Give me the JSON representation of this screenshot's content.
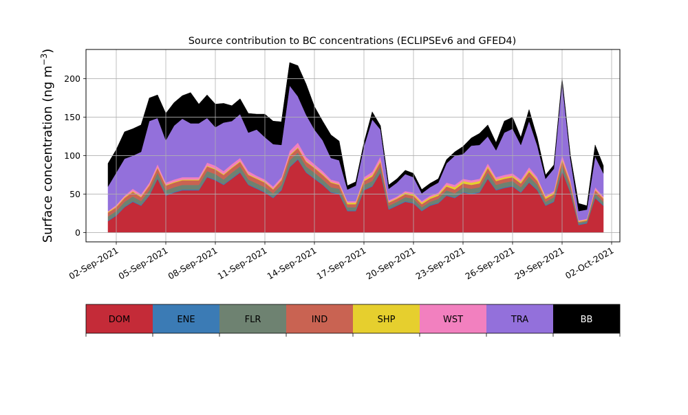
{
  "chart_data": {
    "type": "area",
    "stacked": true,
    "title": "Source contribution to BC concentrations (ECLIPSEv6 and GFED4)",
    "ylabel_main": "Surface concentration (ng m",
    "ylabel_sup": "−3",
    "ylabel_close": ")",
    "xlabel": "",
    "ylim": [
      -12,
      238
    ],
    "yticks": [
      0,
      50,
      100,
      150,
      200
    ],
    "xlim": [
      "2021-08-31T04:00",
      "2021-10-02T12:00"
    ],
    "x_ticks": [
      {
        "date": "2021-09-02",
        "label": "02-Sep-2021"
      },
      {
        "date": "2021-09-05",
        "label": "05-Sep-2021"
      },
      {
        "date": "2021-09-08",
        "label": "08-Sep-2021"
      },
      {
        "date": "2021-09-11",
        "label": "11-Sep-2021"
      },
      {
        "date": "2021-09-14",
        "label": "14-Sep-2021"
      },
      {
        "date": "2021-09-17",
        "label": "17-Sep-2021"
      },
      {
        "date": "2021-09-20",
        "label": "20-Sep-2021"
      },
      {
        "date": "2021-09-23",
        "label": "23-Sep-2021"
      },
      {
        "date": "2021-09-26",
        "label": "26-Sep-2021"
      },
      {
        "date": "2021-09-29",
        "label": "29-Sep-2021"
      },
      {
        "date": "2021-10-02",
        "label": "02-Oct-2021"
      }
    ],
    "grid": true,
    "x": [
      "2021-09-01T12:00",
      "2021-09-02T00:00",
      "2021-09-02T12:00",
      "2021-09-03T00:00",
      "2021-09-03T12:00",
      "2021-09-04T00:00",
      "2021-09-04T12:00",
      "2021-09-05T00:00",
      "2021-09-05T12:00",
      "2021-09-06T00:00",
      "2021-09-06T12:00",
      "2021-09-07T00:00",
      "2021-09-07T12:00",
      "2021-09-08T00:00",
      "2021-09-08T12:00",
      "2021-09-09T00:00",
      "2021-09-09T12:00",
      "2021-09-10T00:00",
      "2021-09-10T12:00",
      "2021-09-11T00:00",
      "2021-09-11T12:00",
      "2021-09-12T00:00",
      "2021-09-12T12:00",
      "2021-09-13T00:00",
      "2021-09-13T12:00",
      "2021-09-14T00:00",
      "2021-09-14T12:00",
      "2021-09-15T00:00",
      "2021-09-15T12:00",
      "2021-09-16T00:00",
      "2021-09-16T12:00",
      "2021-09-17T00:00",
      "2021-09-17T12:00",
      "2021-09-18T00:00",
      "2021-09-18T12:00",
      "2021-09-19T00:00",
      "2021-09-19T12:00",
      "2021-09-20T00:00",
      "2021-09-20T12:00",
      "2021-09-21T00:00",
      "2021-09-21T12:00",
      "2021-09-22T00:00",
      "2021-09-22T12:00",
      "2021-09-23T00:00",
      "2021-09-23T12:00",
      "2021-09-24T00:00",
      "2021-09-24T12:00",
      "2021-09-25T00:00",
      "2021-09-25T12:00",
      "2021-09-26T00:00",
      "2021-09-26T12:00",
      "2021-09-27T00:00",
      "2021-09-27T12:00",
      "2021-09-28T00:00",
      "2021-09-28T12:00",
      "2021-09-29T00:00",
      "2021-09-29T12:00",
      "2021-09-30T00:00",
      "2021-09-30T12:00",
      "2021-10-01T00:00",
      "2021-10-01T12:00"
    ],
    "series": [
      {
        "name": "DOM",
        "color": "#c42b38",
        "values": [
          15,
          22,
          33,
          40,
          35,
          48,
          70,
          48,
          52,
          55,
          55,
          55,
          72,
          68,
          62,
          70,
          78,
          62,
          57,
          52,
          45,
          55,
          85,
          95,
          78,
          70,
          62,
          52,
          50,
          28,
          28,
          55,
          60,
          78,
          30,
          35,
          40,
          38,
          28,
          35,
          38,
          48,
          45,
          52,
          50,
          52,
          70,
          55,
          58,
          60,
          52,
          65,
          55,
          35,
          40,
          80,
          52,
          10,
          12,
          45,
          35
        ]
      },
      {
        "name": "ENE",
        "color": "#3b7bb5",
        "values": [
          1,
          1,
          1,
          1,
          1,
          1,
          1,
          1,
          1,
          1,
          1,
          1,
          1,
          1,
          1,
          1,
          1,
          1,
          1,
          1,
          1,
          1,
          1,
          1,
          1,
          1,
          1,
          1,
          1,
          1,
          1,
          1,
          1,
          1,
          1,
          1,
          1,
          1,
          1,
          1,
          1,
          1,
          1,
          1,
          1,
          1,
          1,
          1,
          1,
          1,
          1,
          1,
          1,
          1,
          1,
          1,
          1,
          1,
          1,
          1,
          1
        ]
      },
      {
        "name": "FLR",
        "color": "#6e8271",
        "values": [
          5,
          5,
          6,
          6,
          5,
          6,
          7,
          6,
          6,
          6,
          6,
          6,
          7,
          7,
          6,
          7,
          7,
          6,
          6,
          6,
          5,
          6,
          8,
          8,
          7,
          7,
          6,
          6,
          6,
          4,
          4,
          6,
          6,
          7,
          4,
          4,
          5,
          5,
          4,
          4,
          5,
          6,
          5,
          6,
          6,
          6,
          7,
          6,
          6,
          6,
          6,
          7,
          6,
          4,
          5,
          7,
          6,
          2,
          2,
          5,
          4
        ]
      },
      {
        "name": "IND",
        "color": "#c96352",
        "values": [
          5,
          5,
          5,
          6,
          5,
          6,
          6,
          6,
          6,
          6,
          6,
          6,
          6,
          6,
          6,
          6,
          6,
          6,
          6,
          6,
          5,
          6,
          6,
          6,
          6,
          6,
          6,
          6,
          5,
          4,
          4,
          5,
          6,
          6,
          4,
          4,
          4,
          4,
          4,
          4,
          4,
          5,
          5,
          5,
          5,
          5,
          6,
          5,
          5,
          5,
          5,
          6,
          5,
          4,
          4,
          6,
          5,
          1,
          1,
          4,
          4
        ]
      },
      {
        "name": "SHP",
        "color": "#e6cf2e",
        "values": [
          1,
          1,
          1,
          1,
          1,
          1,
          1,
          1,
          1,
          1,
          1,
          1,
          1,
          1,
          1,
          1,
          1,
          1,
          1,
          1,
          1,
          1,
          1,
          1,
          1,
          1,
          1,
          1,
          1,
          2,
          2,
          2,
          2,
          2,
          1,
          1,
          2,
          2,
          2,
          2,
          2,
          2,
          3,
          3,
          3,
          3,
          2,
          2,
          2,
          2,
          2,
          2,
          2,
          2,
          2,
          2,
          2,
          1,
          1,
          1,
          1
        ]
      },
      {
        "name": "WST",
        "color": "#f280bf",
        "values": [
          1,
          2,
          2,
          3,
          3,
          3,
          4,
          3,
          3,
          3,
          3,
          3,
          4,
          4,
          4,
          4,
          4,
          4,
          3,
          3,
          3,
          3,
          5,
          6,
          5,
          4,
          4,
          3,
          3,
          2,
          2,
          3,
          4,
          5,
          2,
          2,
          2,
          2,
          2,
          2,
          2,
          3,
          3,
          3,
          3,
          3,
          4,
          3,
          3,
          3,
          3,
          4,
          3,
          2,
          2,
          5,
          3,
          1,
          1,
          3,
          2
        ]
      },
      {
        "name": "TRA",
        "color": "#9370db",
        "values": [
          32,
          42,
          48,
          43,
          55,
          80,
          60,
          55,
          70,
          76,
          70,
          70,
          58,
          50,
          63,
          56,
          57,
          50,
          60,
          55,
          55,
          42,
          85,
          60,
          55,
          45,
          40,
          28,
          28,
          15,
          20,
          40,
          68,
          35,
          15,
          18,
          22,
          20,
          10,
          11,
          13,
          25,
          38,
          32,
          45,
          44,
          35,
          35,
          55,
          58,
          45,
          60,
          41,
          22,
          29,
          95,
          27,
          12,
          12,
          40,
          30
        ]
      },
      {
        "name": "BB",
        "color": "#000000",
        "values": [
          30,
          30,
          35,
          35,
          35,
          30,
          30,
          35,
          30,
          30,
          40,
          25,
          30,
          30,
          25,
          20,
          20,
          25,
          20,
          30,
          30,
          30,
          30,
          40,
          40,
          30,
          25,
          30,
          25,
          5,
          5,
          5,
          10,
          5,
          5,
          5,
          5,
          5,
          5,
          5,
          5,
          5,
          5,
          10,
          10,
          15,
          15,
          10,
          15,
          15,
          10,
          15,
          10,
          5,
          5,
          5,
          5,
          10,
          5,
          15,
          10
        ]
      }
    ]
  }
}
